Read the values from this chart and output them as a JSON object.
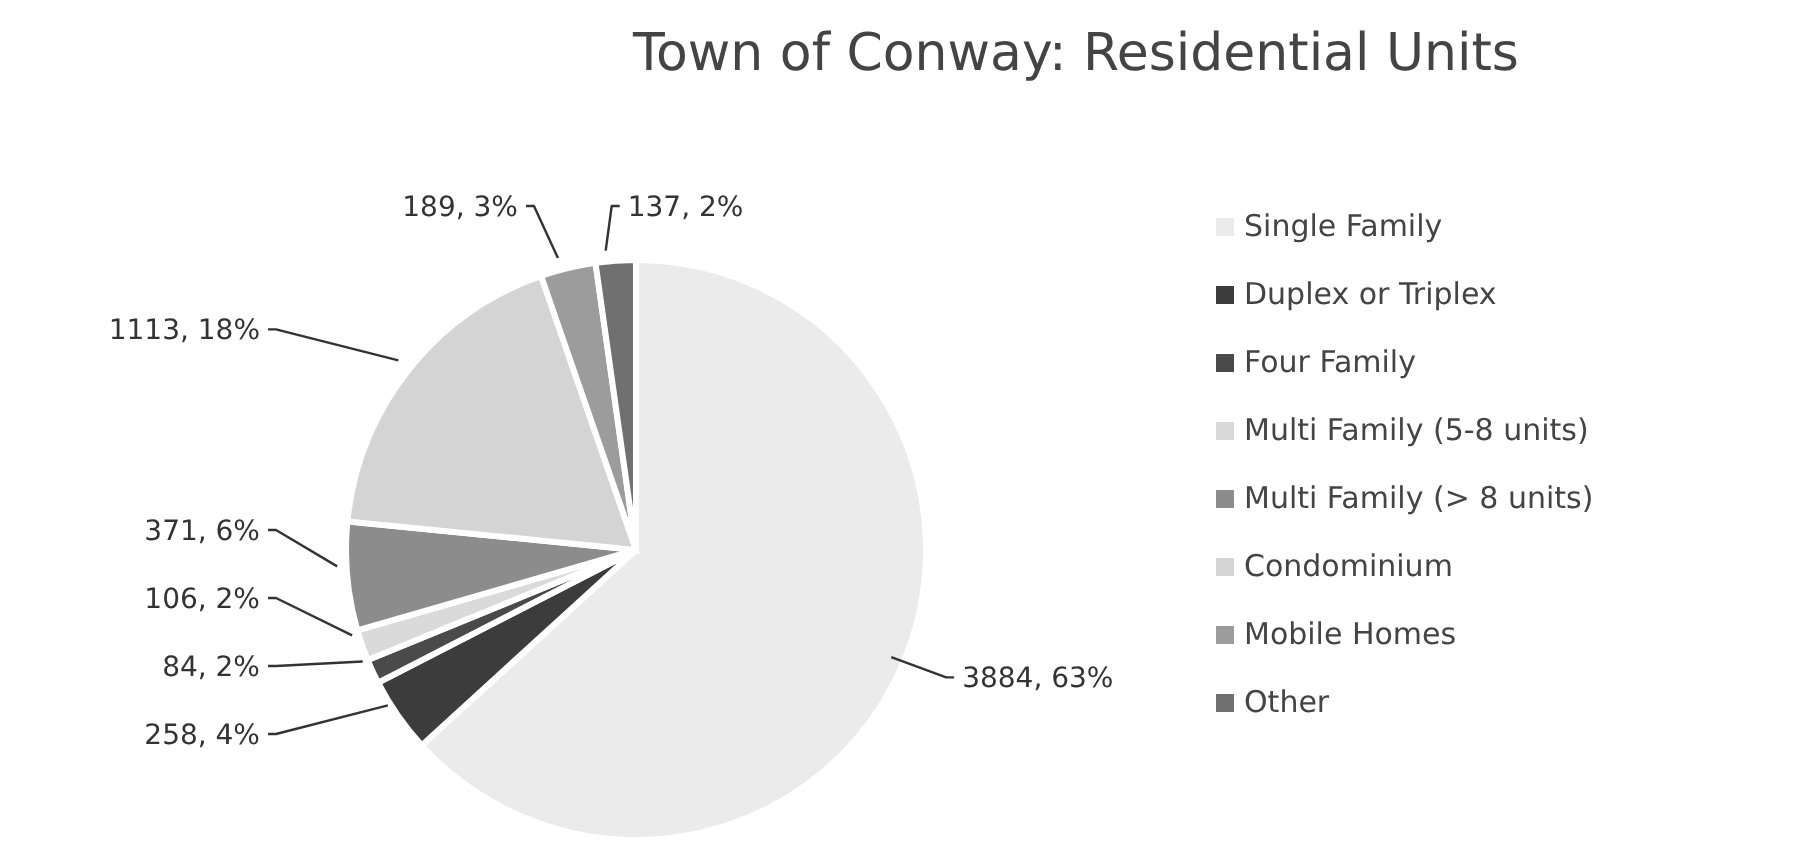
{
  "chart_data": {
    "type": "pie",
    "title": "Town of Conway: Residential Units",
    "categories": [
      "Single Family",
      "Duplex or Triplex",
      "Four Family",
      "Multi Family (5-8 units)",
      "Multi Family (> 8 units)",
      "Condominium",
      "Mobile Homes",
      "Other"
    ],
    "values": [
      3884,
      258,
      84,
      106,
      371,
      1113,
      189,
      137
    ],
    "colors": [
      "#ebebeb",
      "#3c3c3c",
      "#4a4a4a",
      "#dadada",
      "#8c8c8c",
      "#d4d4d4",
      "#9c9c9c",
      "#707070"
    ],
    "value_labels": [
      "3884, 63%",
      "258, 4%",
      "84, 2%",
      "106, 2%",
      "371, 6%",
      "1113, 18%",
      "189, 3%",
      "137, 2%"
    ],
    "legend": "right"
  }
}
